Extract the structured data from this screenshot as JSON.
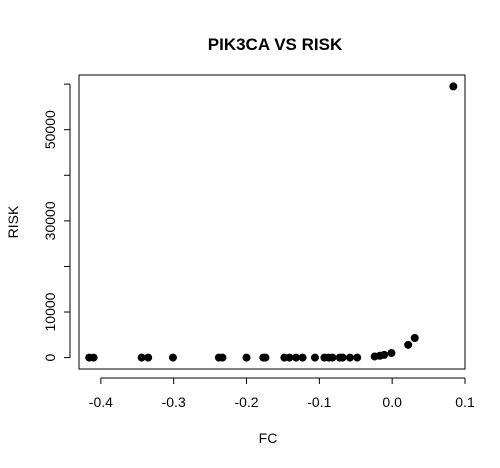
{
  "chart_data": {
    "type": "scatter",
    "title": "PIK3CA VS RISK",
    "xlabel": "FC",
    "ylabel": "RISK",
    "xlim": [
      -0.43,
      0.1
    ],
    "ylim": [
      -2500,
      62000
    ],
    "xticks": [
      -0.4,
      -0.3,
      -0.2,
      -0.1,
      0.0,
      0.1
    ],
    "xtick_labels": [
      "-0.4",
      "-0.3",
      "-0.2",
      "-0.1",
      "0.0",
      "0.1"
    ],
    "yticks": [
      0,
      10000,
      30000,
      50000
    ],
    "ytick_labels": [
      "0",
      "10000",
      "30000",
      "50000"
    ],
    "yticks_minor": [
      20000,
      40000,
      60000
    ],
    "grid": false,
    "points": [
      {
        "x": -0.416,
        "y": 0
      },
      {
        "x": -0.41,
        "y": 0
      },
      {
        "x": -0.344,
        "y": 0
      },
      {
        "x": -0.335,
        "y": 0
      },
      {
        "x": -0.301,
        "y": 0
      },
      {
        "x": -0.238,
        "y": 0
      },
      {
        "x": -0.233,
        "y": 0
      },
      {
        "x": -0.2,
        "y": 0
      },
      {
        "x": -0.177,
        "y": 0
      },
      {
        "x": -0.174,
        "y": 0
      },
      {
        "x": -0.148,
        "y": 0
      },
      {
        "x": -0.141,
        "y": 0
      },
      {
        "x": -0.132,
        "y": 0
      },
      {
        "x": -0.123,
        "y": 0
      },
      {
        "x": -0.106,
        "y": 0
      },
      {
        "x": -0.093,
        "y": 0
      },
      {
        "x": -0.087,
        "y": 0
      },
      {
        "x": -0.082,
        "y": 0
      },
      {
        "x": -0.072,
        "y": 0
      },
      {
        "x": -0.068,
        "y": 0
      },
      {
        "x": -0.058,
        "y": 0
      },
      {
        "x": -0.048,
        "y": 0
      },
      {
        "x": -0.024,
        "y": 250
      },
      {
        "x": -0.017,
        "y": 400
      },
      {
        "x": -0.011,
        "y": 600
      },
      {
        "x": -0.001,
        "y": 1000
      },
      {
        "x": 0.022,
        "y": 2800
      },
      {
        "x": 0.031,
        "y": 4300
      },
      {
        "x": 0.084,
        "y": 59500
      }
    ]
  }
}
